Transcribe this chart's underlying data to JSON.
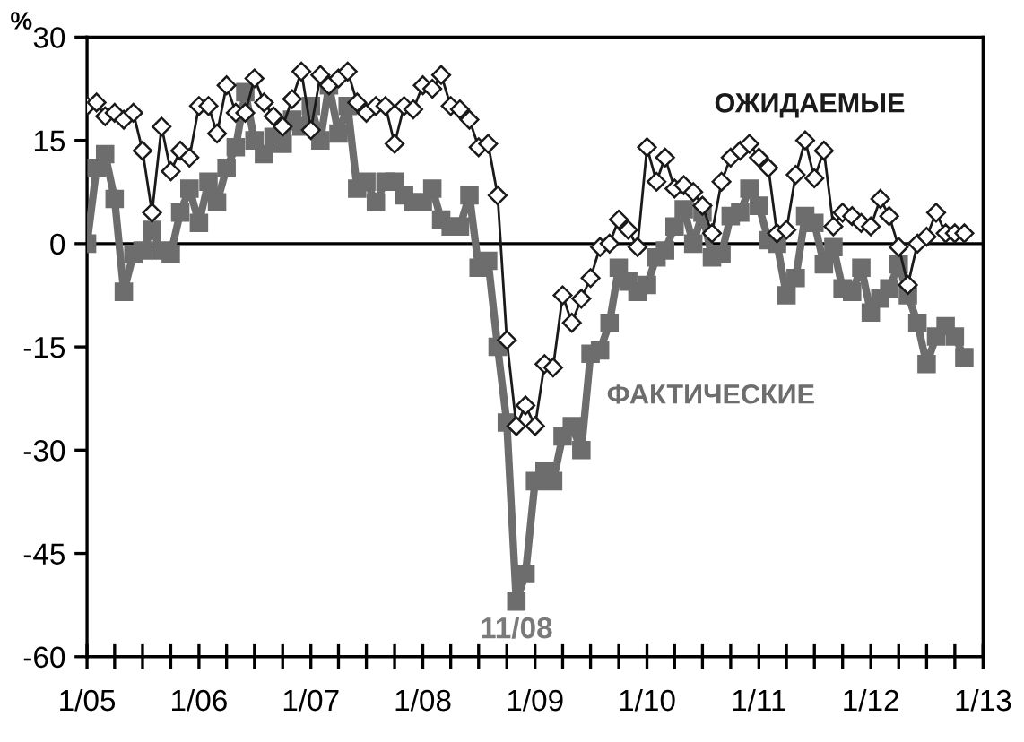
{
  "chart_data": {
    "type": "line",
    "ylabel": "%",
    "x": [
      "2005-01",
      "2005-02",
      "2005-03",
      "2005-04",
      "2005-05",
      "2005-06",
      "2005-07",
      "2005-08",
      "2005-09",
      "2005-10",
      "2005-11",
      "2005-12",
      "2006-01",
      "2006-02",
      "2006-03",
      "2006-04",
      "2006-05",
      "2006-06",
      "2006-07",
      "2006-08",
      "2006-09",
      "2006-10",
      "2006-11",
      "2006-12",
      "2007-01",
      "2007-02",
      "2007-03",
      "2007-04",
      "2007-05",
      "2007-06",
      "2007-07",
      "2007-08",
      "2007-09",
      "2007-10",
      "2007-11",
      "2007-12",
      "2008-01",
      "2008-02",
      "2008-03",
      "2008-04",
      "2008-05",
      "2008-06",
      "2008-07",
      "2008-08",
      "2008-09",
      "2008-10",
      "2008-11",
      "2008-12",
      "2009-01",
      "2009-02",
      "2009-03",
      "2009-04",
      "2009-05",
      "2009-06",
      "2009-07",
      "2009-08",
      "2009-09",
      "2009-10",
      "2009-11",
      "2009-12",
      "2010-01",
      "2010-02",
      "2010-03",
      "2010-04",
      "2010-05",
      "2010-06",
      "2010-07",
      "2010-08",
      "2010-09",
      "2010-10",
      "2010-11",
      "2010-12",
      "2011-01",
      "2011-02",
      "2011-03",
      "2011-04",
      "2011-05",
      "2011-06",
      "2011-07",
      "2011-08",
      "2011-09",
      "2011-10",
      "2011-11",
      "2011-12",
      "2012-01",
      "2012-02",
      "2012-03",
      "2012-04",
      "2012-05",
      "2012-06",
      "2012-07",
      "2012-08",
      "2012-09",
      "2012-10",
      "2012-11"
    ],
    "series": [
      {
        "name": "ОЖИДАЕМЫЕ",
        "color": "#1a1a1a",
        "marker": "diamond",
        "values": [
          20,
          20.5,
          18.5,
          19,
          18,
          19,
          13.5,
          4.5,
          17,
          10.5,
          13.5,
          12.5,
          20,
          20,
          16,
          23,
          19,
          19,
          24,
          20.5,
          18.5,
          17,
          21,
          25,
          16.5,
          24.5,
          23,
          24,
          25,
          20.5,
          19,
          20,
          20,
          14.5,
          20,
          19.5,
          23,
          22.5,
          24.5,
          20,
          19.5,
          18,
          14,
          14.5,
          7,
          -14,
          -26.5,
          -23.5,
          -26.5,
          -17.5,
          -18,
          -7.5,
          -11.5,
          -8,
          -5,
          -0.5,
          0,
          3.5,
          2,
          -0.5,
          14,
          9,
          12.5,
          8,
          8.5,
          7.5,
          5.5,
          1.5,
          9,
          12.5,
          13.5,
          14.5,
          12.5,
          11,
          1.5,
          2,
          10,
          15,
          9.5,
          13.5,
          2.5,
          4.5,
          4,
          3,
          2.5,
          6.5,
          4,
          -0.5,
          -6,
          0,
          1,
          4.5,
          1.5,
          1.5,
          1.5
        ]
      },
      {
        "name": "ФАКТИЧЕСКИЕ",
        "color": "#6d6d6d",
        "marker": "square",
        "values": [
          0,
          11,
          13,
          6.5,
          -7,
          -1.5,
          -1,
          2,
          -1,
          -1.5,
          4.5,
          8,
          3,
          9,
          6,
          11,
          14,
          22,
          15,
          13,
          15.5,
          14.5,
          18,
          17,
          20,
          15,
          23,
          16,
          20,
          8,
          9,
          6,
          9,
          9,
          7,
          6,
          6,
          8,
          3.5,
          2.5,
          2.5,
          7,
          -3.5,
          -2.5,
          -15,
          -26,
          -52,
          -48,
          -34.5,
          -33,
          -34.5,
          -28,
          -26.5,
          -30,
          -16,
          -15.5,
          -11.5,
          -3.5,
          -5.5,
          -7,
          -6,
          -2,
          -1,
          2.5,
          5,
          0,
          4.5,
          -2,
          -1.5,
          4,
          4.5,
          8,
          5.5,
          0.5,
          0,
          -7.5,
          -5,
          4,
          3,
          -3,
          -0.5,
          -6.5,
          -7,
          -3.5,
          -10,
          -8,
          -6.5,
          -3,
          -7.5,
          -11.5,
          -17.5,
          -13.5,
          -12,
          -13.5,
          -16.5
        ]
      }
    ],
    "annotations": [
      {
        "text": "11/08",
        "x": "2008-11",
        "y": -52
      }
    ],
    "ref_lines": [
      {
        "axis": "y",
        "value": 0,
        "color": "#000000"
      }
    ],
    "xlim": [
      "2005-01",
      "2013-01"
    ],
    "xticks": [
      {
        "value": "2005-01",
        "label": "1/05"
      },
      {
        "value": "2005-04",
        "label": null
      },
      {
        "value": "2005-07",
        "label": null
      },
      {
        "value": "2005-10",
        "label": null
      },
      {
        "value": "2006-01",
        "label": "1/06"
      },
      {
        "value": "2006-04",
        "label": null
      },
      {
        "value": "2006-07",
        "label": null
      },
      {
        "value": "2006-10",
        "label": null
      },
      {
        "value": "2007-01",
        "label": "1/07"
      },
      {
        "value": "2007-04",
        "label": null
      },
      {
        "value": "2007-07",
        "label": null
      },
      {
        "value": "2007-10",
        "label": null
      },
      {
        "value": "2008-01",
        "label": "1/08"
      },
      {
        "value": "2008-04",
        "label": null
      },
      {
        "value": "2008-07",
        "label": null
      },
      {
        "value": "2008-10",
        "label": null
      },
      {
        "value": "2009-01",
        "label": "1/09"
      },
      {
        "value": "2009-04",
        "label": null
      },
      {
        "value": "2009-07",
        "label": null
      },
      {
        "value": "2009-10",
        "label": null
      },
      {
        "value": "2010-01",
        "label": "1/10"
      },
      {
        "value": "2010-04",
        "label": null
      },
      {
        "value": "2010-07",
        "label": null
      },
      {
        "value": "2010-10",
        "label": null
      },
      {
        "value": "2011-01",
        "label": "1/11"
      },
      {
        "value": "2011-04",
        "label": null
      },
      {
        "value": "2011-07",
        "label": null
      },
      {
        "value": "2011-10",
        "label": null
      },
      {
        "value": "2012-01",
        "label": "1/12"
      },
      {
        "value": "2012-04",
        "label": null
      },
      {
        "value": "2012-07",
        "label": null
      },
      {
        "value": "2012-10",
        "label": null
      },
      {
        "value": "2013-01",
        "label": "1/13"
      }
    ],
    "ylim": [
      -60,
      30
    ],
    "yticks": [
      -60,
      -45,
      -30,
      -15,
      0,
      15,
      30
    ],
    "grid": false,
    "legend": false
  }
}
